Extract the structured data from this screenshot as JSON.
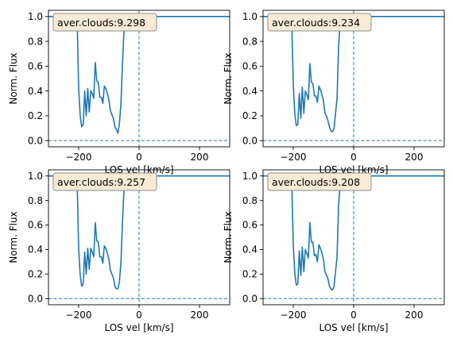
{
  "colors": {
    "line": "#1f77b4",
    "annotation_face": "#f8ebd5",
    "annotation_edge": "#8c8c8c",
    "axes": "#000000"
  },
  "chart_data": [
    {
      "type": "line",
      "annotation": "aver.clouds:9.298",
      "xlabel": "LOS vel [km/s]",
      "ylabel": "Norm. Flux",
      "xlim": [
        -300,
        300
      ],
      "ylim": [
        -0.05,
        1.05
      ],
      "x_ticks": [
        -200,
        0,
        200
      ],
      "x_tick_labels": [
        "−200",
        "0",
        "200"
      ],
      "y_ticks": [
        0.0,
        0.2,
        0.4,
        0.6,
        0.8,
        1.0
      ],
      "y_tick_labels": [
        "0.0",
        "0.2",
        "0.4",
        "0.6",
        "0.8",
        "1.0"
      ],
      "grid": false,
      "reference_lines": {
        "vertical_x": 0,
        "horizontal_y": 0
      },
      "series": [
        {
          "x": [
            -300,
            -210,
            -205,
            -200,
            -195,
            -190,
            -185,
            -180,
            -175,
            -170,
            -165,
            -160,
            -155,
            -150,
            -145,
            -140,
            -135,
            -130,
            -125,
            -120,
            -115,
            -110,
            -105,
            -100,
            -95,
            -90,
            -85,
            -80,
            -75,
            -70,
            -65,
            -60,
            -55,
            -50,
            -45,
            -40,
            -35,
            -30,
            -25,
            -20,
            -15,
            -10,
            300
          ],
          "y": [
            1.0,
            1.0,
            0.97,
            0.42,
            0.2,
            0.11,
            0.13,
            0.4,
            0.2,
            0.42,
            0.23,
            0.4,
            0.38,
            0.34,
            0.63,
            0.48,
            0.47,
            0.35,
            0.35,
            0.3,
            0.44,
            0.42,
            0.38,
            0.33,
            0.24,
            0.21,
            0.18,
            0.11,
            0.09,
            0.06,
            0.14,
            0.3,
            0.62,
            0.88,
            0.98,
            1.0,
            1.0,
            1.0,
            1.0,
            1.0,
            1.0,
            1.0,
            1.0
          ]
        }
      ]
    },
    {
      "type": "line",
      "annotation": "aver.clouds:9.234",
      "xlabel": "LOS vel [km/s]",
      "ylabel": "Norm. Flux",
      "xlim": [
        -300,
        300
      ],
      "ylim": [
        -0.05,
        1.05
      ],
      "x_ticks": [
        -200,
        0,
        200
      ],
      "x_tick_labels": [
        "−200",
        "0",
        "200"
      ],
      "y_ticks": [
        0.0,
        0.2,
        0.4,
        0.6,
        0.8,
        1.0
      ],
      "y_tick_labels": [
        "0.0",
        "0.2",
        "0.4",
        "0.6",
        "0.8",
        "1.0"
      ],
      "grid": false,
      "reference_lines": {
        "vertical_x": 0,
        "horizontal_y": 0
      },
      "series": [
        {
          "x": [
            -300,
            -210,
            -205,
            -200,
            -195,
            -190,
            -185,
            -180,
            -175,
            -170,
            -165,
            -160,
            -155,
            -150,
            -145,
            -140,
            -135,
            -130,
            -125,
            -120,
            -115,
            -110,
            -105,
            -100,
            -95,
            -90,
            -85,
            -80,
            -75,
            -70,
            -65,
            -60,
            -55,
            -50,
            -45,
            -40,
            -35,
            -30,
            -25,
            -20,
            -15,
            -10,
            300
          ],
          "y": [
            1.0,
            1.0,
            0.96,
            0.45,
            0.22,
            0.12,
            0.13,
            0.38,
            0.18,
            0.43,
            0.22,
            0.4,
            0.37,
            0.33,
            0.62,
            0.47,
            0.46,
            0.36,
            0.36,
            0.31,
            0.44,
            0.41,
            0.37,
            0.32,
            0.22,
            0.2,
            0.16,
            0.11,
            0.08,
            0.07,
            0.1,
            0.22,
            0.34,
            0.75,
            0.95,
            1.0,
            1.0,
            1.0,
            1.0,
            1.0,
            1.0,
            1.0,
            1.0
          ]
        }
      ]
    },
    {
      "type": "line",
      "annotation": "aver.clouds:9.257",
      "xlabel": "LOS vel [km/s]",
      "ylabel": "Norm. Flux",
      "xlim": [
        -300,
        300
      ],
      "ylim": [
        -0.05,
        1.05
      ],
      "x_ticks": [
        -200,
        0,
        200
      ],
      "x_tick_labels": [
        "−200",
        "0",
        "200"
      ],
      "y_ticks": [
        0.0,
        0.2,
        0.4,
        0.6,
        0.8,
        1.0
      ],
      "y_tick_labels": [
        "0.0",
        "0.2",
        "0.4",
        "0.6",
        "0.8",
        "1.0"
      ],
      "grid": false,
      "reference_lines": {
        "vertical_x": 0,
        "horizontal_y": 0
      },
      "series": [
        {
          "x": [
            -300,
            -210,
            -205,
            -200,
            -195,
            -190,
            -185,
            -180,
            -175,
            -170,
            -165,
            -160,
            -155,
            -150,
            -145,
            -140,
            -135,
            -130,
            -125,
            -120,
            -115,
            -110,
            -105,
            -100,
            -95,
            -90,
            -85,
            -80,
            -75,
            -70,
            -65,
            -60,
            -55,
            -50,
            -45,
            -40,
            -35,
            -30,
            -25,
            -20,
            -15,
            -10,
            300
          ],
          "y": [
            1.0,
            1.0,
            0.95,
            0.41,
            0.19,
            0.1,
            0.12,
            0.38,
            0.2,
            0.41,
            0.24,
            0.41,
            0.38,
            0.34,
            0.62,
            0.47,
            0.46,
            0.34,
            0.34,
            0.29,
            0.43,
            0.41,
            0.37,
            0.32,
            0.23,
            0.2,
            0.17,
            0.1,
            0.08,
            0.08,
            0.14,
            0.3,
            0.62,
            0.88,
            0.98,
            1.0,
            1.0,
            1.0,
            1.0,
            1.0,
            1.0,
            1.0,
            1.0
          ]
        }
      ]
    },
    {
      "type": "line",
      "annotation": "aver.clouds:9.208",
      "xlabel": "LOS vel [km/s]",
      "ylabel": "Norm. Flux",
      "xlim": [
        -300,
        300
      ],
      "ylim": [
        -0.05,
        1.05
      ],
      "x_ticks": [
        -200,
        0,
        200
      ],
      "x_tick_labels": [
        "−200",
        "0",
        "200"
      ],
      "y_ticks": [
        0.0,
        0.2,
        0.4,
        0.6,
        0.8,
        1.0
      ],
      "y_tick_labels": [
        "0.0",
        "0.2",
        "0.4",
        "0.6",
        "0.8",
        "1.0"
      ],
      "grid": false,
      "reference_lines": {
        "vertical_x": 0,
        "horizontal_y": 0
      },
      "series": [
        {
          "x": [
            -300,
            -210,
            -205,
            -200,
            -195,
            -190,
            -185,
            -180,
            -175,
            -170,
            -165,
            -160,
            -155,
            -150,
            -145,
            -140,
            -135,
            -130,
            -125,
            -120,
            -115,
            -110,
            -105,
            -100,
            -95,
            -90,
            -85,
            -80,
            -75,
            -70,
            -65,
            -60,
            -55,
            -50,
            -45,
            -40,
            -35,
            -30,
            -25,
            -20,
            -15,
            -10,
            300
          ],
          "y": [
            1.0,
            1.0,
            0.95,
            0.44,
            0.21,
            0.11,
            0.12,
            0.39,
            0.19,
            0.42,
            0.22,
            0.4,
            0.37,
            0.33,
            0.62,
            0.46,
            0.46,
            0.35,
            0.36,
            0.3,
            0.44,
            0.41,
            0.37,
            0.32,
            0.22,
            0.19,
            0.16,
            0.1,
            0.08,
            0.07,
            0.1,
            0.22,
            0.34,
            0.75,
            0.95,
            1.0,
            1.0,
            1.0,
            1.0,
            1.0,
            1.0,
            1.0,
            1.0
          ]
        }
      ]
    }
  ]
}
